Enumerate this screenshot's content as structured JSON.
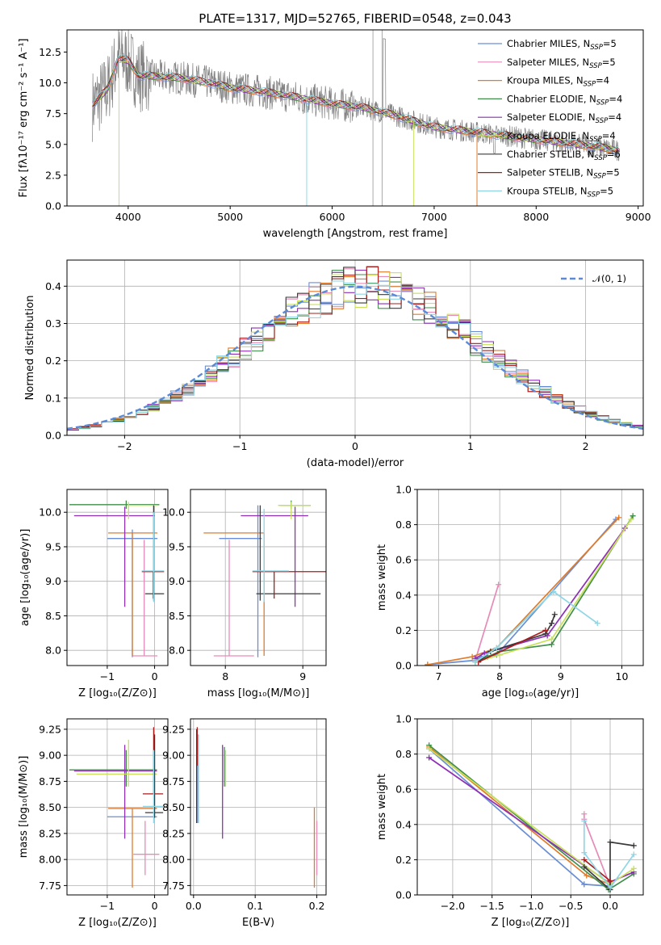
{
  "title": "PLATE=1317, MJD=52765, FIBERID=0548, z=0.043",
  "series_legend": [
    {
      "text": "Chabrier MILES, N",
      "sub": "SSP",
      "tail": "=5",
      "color": "#6a8ed6"
    },
    {
      "text": "Salpeter MILES, N",
      "sub": "SSP",
      "tail": "=5",
      "color": "#e68bb8"
    },
    {
      "text": "Kroupa MILES, N",
      "sub": "SSP",
      "tail": "=4",
      "color": "#e07b2a"
    },
    {
      "text": "Chabrier ELODIE, N",
      "sub": "SSP",
      "tail": "=4",
      "color": "#3f8f4a"
    },
    {
      "text": "Salpeter ELODIE, N",
      "sub": "SSP",
      "tail": "=4",
      "color": "#8e2fb5"
    },
    {
      "text": "Kroupa ELODIE, N",
      "sub": "SSP",
      "tail": "=4",
      "color": "#c8e05a"
    },
    {
      "text": "Chabrier STELIB, N",
      "sub": "SSP",
      "tail": "=6",
      "color": "#3a3a3a"
    },
    {
      "text": "Salpeter STELIB, N",
      "sub": "SSP",
      "tail": "=5",
      "color": "#a81c1c"
    },
    {
      "text": "Kroupa STELIB, N",
      "sub": "SSP",
      "tail": "=5",
      "color": "#8fd6e6"
    }
  ],
  "chart_data": [
    {
      "id": "spectrum",
      "type": "line",
      "xlabel": "wavelength [Angstrom, rest frame]",
      "ylabel": "Flux [fλ10⁻¹⁷ erg cm⁻² s⁻¹ A⁻¹]",
      "xlim": [
        3400,
        9050
      ],
      "ylim": [
        0,
        14.3
      ],
      "xticks": [
        4000,
        5000,
        6000,
        7000,
        8000,
        9000
      ],
      "yticks": [
        0.0,
        2.5,
        5.0,
        7.5,
        10.0,
        12.5
      ],
      "data_color": "#808080",
      "data_range": [
        3650,
        8820
      ],
      "model_points": [
        [
          3650,
          8.2
        ],
        [
          3800,
          9.5
        ],
        [
          3900,
          12.0
        ],
        [
          4000,
          11.8
        ],
        [
          4100,
          10.6
        ],
        [
          4300,
          10.5
        ],
        [
          4500,
          10.4
        ],
        [
          4800,
          10.0
        ],
        [
          5000,
          9.6
        ],
        [
          5300,
          9.3
        ],
        [
          5600,
          8.9
        ],
        [
          6000,
          8.3
        ],
        [
          6300,
          8.0
        ],
        [
          6600,
          7.4
        ],
        [
          7000,
          6.4
        ],
        [
          7400,
          6.0
        ],
        [
          7800,
          5.6
        ],
        [
          8200,
          5.2
        ],
        [
          8600,
          4.8
        ],
        [
          8820,
          4.5
        ]
      ]
    },
    {
      "id": "residual-histogram",
      "type": "histogram",
      "xlabel": "(data-model)/error",
      "ylabel": "Normed distribution",
      "xlim": [
        -2.5,
        2.5
      ],
      "ylim": [
        0,
        0.47
      ],
      "xticks": [
        -2,
        -1,
        0,
        1,
        2
      ],
      "yticks": [
        0.0,
        0.1,
        0.2,
        0.3,
        0.4
      ],
      "reference_label": "𝒩(0, 1)",
      "reference_color": "#5b8ad6"
    },
    {
      "id": "age-vs-metallicity",
      "type": "errorbar",
      "xlabel": "Z [log₁₀(Z/Z⊙)]",
      "ylabel": "age  [log₁₀(age/yr)]",
      "xlim": [
        -1.85,
        0.28
      ],
      "ylim": [
        7.78,
        10.33
      ],
      "xticks": [
        -1,
        0
      ],
      "yticks": [
        8.0,
        8.5,
        9.0,
        9.5,
        10.0
      ],
      "points": [
        {
          "s": 0,
          "x": -0.47,
          "y": 9.62,
          "x0": -1.0,
          "x1": 0.06,
          "y0": 7.9,
          "y1": 9.75
        },
        {
          "s": 1,
          "x": -0.22,
          "y": 7.92,
          "x0": -0.47,
          "x1": 0.06,
          "y0": 7.92,
          "y1": 9.6
        },
        {
          "s": 2,
          "x": -0.47,
          "y": 9.7,
          "x0": -0.98,
          "x1": 0.06,
          "y0": 7.92,
          "y1": 9.7
        },
        {
          "s": 3,
          "x": -0.6,
          "y": 10.11,
          "x0": -1.8,
          "x1": 0.1,
          "y0": 10.05,
          "y1": 10.17
        },
        {
          "s": 4,
          "x": -0.63,
          "y": 9.95,
          "x0": -1.7,
          "x1": 0.0,
          "y0": 8.63,
          "y1": 10.08
        },
        {
          "s": 5,
          "x": -0.55,
          "y": 10.1,
          "x0": -0.57,
          "x1": 0.06,
          "y0": 9.9,
          "y1": 10.15
        },
        {
          "s": 6,
          "x": -0.02,
          "y": 8.82,
          "x0": -0.2,
          "x1": 0.2,
          "y0": 8.72,
          "y1": 10.1
        },
        {
          "s": 7,
          "x": -0.03,
          "y": 9.14,
          "x0": -0.27,
          "x1": 0.2,
          "y0": 8.75,
          "y1": 9.14
        },
        {
          "s": 8,
          "x": -0.02,
          "y": 9.15,
          "x0": -0.27,
          "x1": 0.2,
          "y0": 8.7,
          "y1": 10.0
        }
      ]
    },
    {
      "id": "age-vs-mass",
      "type": "errorbar",
      "xlabel": "mass [log₁₀(M/M⊙)]",
      "ylabel": "",
      "xlim": [
        7.55,
        9.3
      ],
      "ylim": [
        7.78,
        10.33
      ],
      "xticks": [
        8,
        9
      ],
      "yticks": [
        8.0,
        8.5,
        9.0,
        9.5,
        10.0
      ],
      "points": [
        {
          "s": 0,
          "x": 8.42,
          "y": 9.62,
          "x0": 7.92,
          "x1": 8.47,
          "y0": 7.9,
          "y1": 10.1
        },
        {
          "s": 1,
          "x": 8.05,
          "y": 7.92,
          "x0": 7.85,
          "x1": 8.37,
          "y0": 7.92,
          "y1": 9.6
        },
        {
          "s": 2,
          "x": 8.5,
          "y": 9.7,
          "x0": 7.72,
          "x1": 8.5,
          "y0": 7.92,
          "y1": 9.7
        },
        {
          "s": 3,
          "x": 8.85,
          "y": 10.1,
          "x0": 8.7,
          "x1": 9.1,
          "y0": 10.05,
          "y1": 10.17
        },
        {
          "s": 4,
          "x": 8.9,
          "y": 9.95,
          "x0": 8.2,
          "x1": 9.07,
          "y0": 8.63,
          "y1": 10.08
        },
        {
          "s": 5,
          "x": 8.85,
          "y": 10.1,
          "x0": 8.68,
          "x1": 9.1,
          "y0": 9.9,
          "y1": 10.15
        },
        {
          "s": 6,
          "x": 8.45,
          "y": 8.82,
          "x0": 8.4,
          "x1": 9.23,
          "y0": 8.72,
          "y1": 10.1
        },
        {
          "s": 7,
          "x": 8.63,
          "y": 9.14,
          "x0": 8.35,
          "x1": 9.3,
          "y0": 8.75,
          "y1": 9.14
        },
        {
          "s": 8,
          "x": 8.5,
          "y": 9.15,
          "x0": 8.35,
          "x1": 8.82,
          "y0": 8.7,
          "y1": 10.05
        }
      ]
    },
    {
      "id": "mass-weight-vs-age",
      "type": "line",
      "xlabel": "age  [log₁₀(age/yr)]",
      "ylabel": "mass weight",
      "xlim": [
        6.65,
        10.35
      ],
      "ylim": [
        0,
        1
      ],
      "xticks": [
        7,
        8,
        9,
        10
      ],
      "yticks": [
        0.0,
        0.2,
        0.4,
        0.6,
        0.8,
        1.0
      ],
      "series": [
        {
          "s": 0,
          "x": [
            6.82,
            7.6,
            7.7,
            7.95,
            9.9
          ],
          "y": [
            0.005,
            0.03,
            0.05,
            0.06,
            0.83
          ]
        },
        {
          "s": 1,
          "x": [
            7.6,
            7.98
          ],
          "y": [
            0.03,
            0.46
          ]
        },
        {
          "s": 2,
          "x": [
            6.82,
            7.55,
            7.95,
            9.95
          ],
          "y": [
            0.005,
            0.05,
            0.1,
            0.84
          ]
        },
        {
          "s": 3,
          "x": [
            7.6,
            7.8,
            8.0,
            8.85,
            10.18
          ],
          "y": [
            0.02,
            0.05,
            0.08,
            0.12,
            0.85
          ]
        },
        {
          "s": 4,
          "x": [
            7.6,
            7.75,
            8.78,
            10.05
          ],
          "y": [
            0.04,
            0.07,
            0.17,
            0.78
          ]
        },
        {
          "s": 5,
          "x": [
            7.6,
            8.0,
            8.85,
            10.15
          ],
          "y": [
            0.02,
            0.06,
            0.15,
            0.83
          ]
        },
        {
          "s": 6,
          "x": [
            7.65,
            7.85,
            8.75,
            8.85,
            8.9
          ],
          "y": [
            0.02,
            0.08,
            0.18,
            0.24,
            0.29
          ]
        },
        {
          "s": 7,
          "x": [
            7.65,
            8.75
          ],
          "y": [
            0.02,
            0.2
          ]
        },
        {
          "s": 8,
          "x": [
            7.6,
            7.95,
            8.88,
            9.6
          ],
          "y": [
            0.02,
            0.1,
            0.42,
            0.24
          ]
        }
      ]
    },
    {
      "id": "mass-vs-metallicity",
      "type": "errorbar",
      "xlabel": "Z [log₁₀(Z/Z⊙)]",
      "ylabel": "mass [log₁₀(M/M⊙)]",
      "xlim": [
        -1.85,
        0.28
      ],
      "ylim": [
        7.66,
        9.35
      ],
      "xticks": [
        -1,
        0
      ],
      "yticks": [
        7.75,
        8.0,
        8.25,
        8.5,
        8.75,
        9.0,
        9.25
      ],
      "points": [
        {
          "s": 0,
          "x": -0.47,
          "y": 8.41,
          "x0": -1.0,
          "x1": 0.05,
          "y0": 8.41,
          "y1": 8.41
        },
        {
          "s": 1,
          "x": -0.2,
          "y": 8.05,
          "x0": -0.45,
          "x1": 0.1,
          "y0": 7.85,
          "y1": 8.37
        },
        {
          "s": 2,
          "x": -0.47,
          "y": 8.49,
          "x0": -0.98,
          "x1": 0.05,
          "y0": 7.73,
          "y1": 8.49
        },
        {
          "s": 3,
          "x": -0.6,
          "y": 8.86,
          "x0": -1.8,
          "x1": 0.05,
          "y0": 8.7,
          "y1": 9.05
        },
        {
          "s": 4,
          "x": -0.63,
          "y": 8.85,
          "x0": -1.7,
          "x1": 0.05,
          "y0": 8.2,
          "y1": 9.1
        },
        {
          "s": 5,
          "x": -0.55,
          "y": 8.82,
          "x0": -1.65,
          "x1": 0.05,
          "y0": 8.7,
          "y1": 9.15
        },
        {
          "s": 6,
          "x": 0.0,
          "y": 8.45,
          "x0": -0.2,
          "x1": 0.18,
          "y0": 8.4,
          "y1": 9.2
        },
        {
          "s": 7,
          "x": -0.02,
          "y": 8.63,
          "x0": -0.25,
          "x1": 0.18,
          "y0": 8.63,
          "y1": 9.27
        },
        {
          "s": 8,
          "x": -0.02,
          "y": 8.51,
          "x0": -0.25,
          "x1": 0.18,
          "y0": 8.35,
          "y1": 9.05
        }
      ]
    },
    {
      "id": "mass-vs-extinction",
      "type": "errorbar",
      "xlabel": "E(B-V)",
      "ylabel": "",
      "xlim": [
        -0.005,
        0.215
      ],
      "ylim": [
        7.66,
        9.35
      ],
      "xticks": [
        0.0,
        0.1,
        0.2
      ],
      "yticks": [
        7.75,
        8.0,
        8.25,
        8.5,
        8.75,
        9.0,
        9.25
      ],
      "points": [
        {
          "s": 0,
          "x": 0.007,
          "y": 8.4,
          "y0": 8.35,
          "y1": 9.2
        },
        {
          "s": 1,
          "x": 0.2,
          "y": 8.05,
          "y0": 7.85,
          "y1": 8.37
        },
        {
          "s": 2,
          "x": 0.196,
          "y": 8.0,
          "y0": 7.73,
          "y1": 8.5
        },
        {
          "s": 3,
          "x": 0.05,
          "y": 8.9,
          "y0": 8.7,
          "y1": 9.08
        },
        {
          "s": 4,
          "x": 0.047,
          "y": 8.9,
          "y0": 8.2,
          "y1": 9.1
        },
        {
          "s": 5,
          "x": 0.052,
          "y": 8.9,
          "y0": 8.7,
          "y1": 9.05
        },
        {
          "s": 6,
          "x": 0.005,
          "y": 8.8,
          "y0": 8.35,
          "y1": 9.25
        },
        {
          "s": 7,
          "x": 0.006,
          "y": 9.1,
          "y0": 8.9,
          "y1": 9.27
        },
        {
          "s": 8,
          "x": 0.008,
          "y": 8.8,
          "y0": 8.35,
          "y1": 9.2
        }
      ]
    },
    {
      "id": "mass-weight-vs-metallicity",
      "type": "line",
      "xlabel": "Z [log₁₀(Z/Z⊙)]",
      "ylabel": "mass weight",
      "xlim": [
        -2.45,
        0.42
      ],
      "ylim": [
        0,
        1
      ],
      "xticks": [
        -2.0,
        -1.5,
        -1.0,
        -0.5,
        0.0
      ],
      "yticks": [
        0.0,
        0.2,
        0.4,
        0.6,
        0.8,
        1.0
      ],
      "series": [
        {
          "s": 0,
          "x": [
            -2.3,
            -0.33,
            -0.33,
            0.0
          ],
          "y": [
            0.83,
            0.06,
            0.06,
            0.05
          ]
        },
        {
          "s": 1,
          "x": [
            -0.33,
            -0.33,
            0.0
          ],
          "y": [
            0.46,
            0.43,
            0.05
          ]
        },
        {
          "s": 2,
          "x": [
            -2.3,
            -0.3,
            0.0
          ],
          "y": [
            0.84,
            0.11,
            0.06
          ]
        },
        {
          "s": 3,
          "x": [
            -2.3,
            -0.02,
            0.3
          ],
          "y": [
            0.85,
            0.03,
            0.12
          ]
        },
        {
          "s": 4,
          "x": [
            -2.3,
            -0.02,
            0.3
          ],
          "y": [
            0.78,
            0.07,
            0.13
          ]
        },
        {
          "s": 5,
          "x": [
            -2.3,
            0.0,
            0.3
          ],
          "y": [
            0.83,
            0.06,
            0.15
          ]
        },
        {
          "s": 6,
          "x": [
            -0.33,
            0.0,
            0.0,
            0.3
          ],
          "y": [
            0.16,
            0.03,
            0.3,
            0.28
          ]
        },
        {
          "s": 7,
          "x": [
            -0.33,
            0.0
          ],
          "y": [
            0.2,
            0.08
          ]
        },
        {
          "s": 8,
          "x": [
            -0.33,
            -0.33,
            0.0,
            0.3
          ],
          "y": [
            0.42,
            0.24,
            0.04,
            0.23
          ]
        }
      ]
    }
  ]
}
